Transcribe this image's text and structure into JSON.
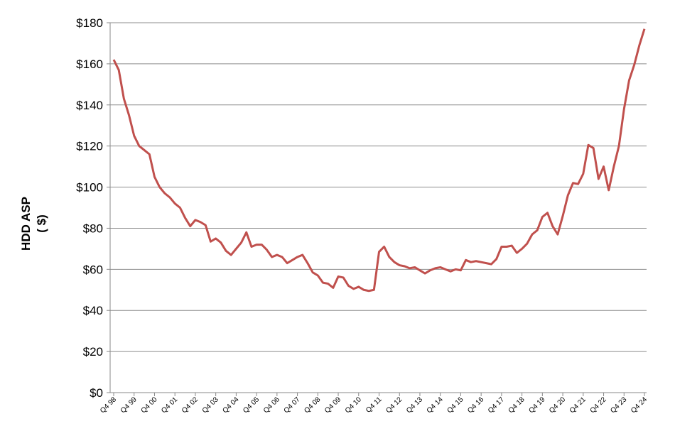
{
  "chart_data": {
    "type": "line",
    "y_label": [
      "HDD ASP",
      "( $)"
    ],
    "categories": [
      "Q4 98",
      null,
      null,
      null,
      "Q4 99",
      null,
      null,
      null,
      "Q4 00",
      null,
      null,
      null,
      "Q4 01",
      null,
      null,
      null,
      "Q4 02",
      null,
      null,
      null,
      "Q4 03",
      null,
      null,
      null,
      "Q4 04",
      null,
      null,
      null,
      "Q4 05",
      null,
      null,
      null,
      "Q4 06",
      null,
      null,
      null,
      "Q4 07",
      null,
      null,
      null,
      "Q4 08",
      null,
      null,
      null,
      "Q4 09",
      null,
      null,
      null,
      "Q4 10",
      null,
      null,
      null,
      "Q4 11",
      null,
      null,
      null,
      "Q4 12",
      null,
      null,
      null,
      "Q4 13",
      null,
      null,
      null,
      "Q4 14",
      null,
      null,
      null,
      "Q4 15",
      null,
      null,
      null,
      "Q4 16",
      null,
      null,
      null,
      "Q4 17",
      null,
      null,
      null,
      "Q4 18",
      null,
      null,
      null,
      "Q4 19",
      null,
      null,
      null,
      "Q4 20",
      null,
      null,
      null,
      "Q4 21",
      null,
      null,
      null,
      "Q4 22",
      null,
      null,
      null,
      "Q4 23",
      null,
      null,
      null,
      "Q4 24"
    ],
    "values": [
      162,
      157,
      143,
      135,
      125,
      120,
      118,
      116,
      105,
      100,
      97,
      95,
      92,
      90,
      85,
      81,
      84,
      83,
      81.5,
      73.5,
      75,
      73,
      69,
      67,
      70,
      73,
      78,
      71,
      72,
      72,
      69.5,
      66,
      67,
      66,
      63,
      64.5,
      66,
      67,
      63,
      58.5,
      57,
      53.5,
      53,
      51,
      56.5,
      56,
      52,
      50.5,
      51.5,
      50,
      49.5,
      50,
      68.5,
      71,
      66,
      63.5,
      62,
      61.5,
      60.5,
      61,
      59.5,
      58,
      59.5,
      60.5,
      61,
      60,
      59,
      60,
      59.5,
      64.5,
      63.5,
      64,
      63.5,
      63,
      62.5,
      65,
      71,
      71,
      71.5,
      68,
      70,
      72.5,
      77,
      79,
      85.5,
      87.5,
      81,
      77,
      86,
      96,
      102,
      101.5,
      106.5,
      120.5,
      119,
      104,
      110,
      98.5,
      110,
      120,
      138,
      152,
      159.5,
      169,
      177
    ],
    "color": "#c0504d",
    "ylim": [
      0,
      180
    ],
    "yticks": [
      {
        "value": 0,
        "label": "$0"
      },
      {
        "value": 20,
        "label": "$20"
      },
      {
        "value": 40,
        "label": "$40"
      },
      {
        "value": 60,
        "label": "$60"
      },
      {
        "value": 80,
        "label": "$80"
      },
      {
        "value": 100,
        "label": "$100"
      },
      {
        "value": 120,
        "label": "$120"
      },
      {
        "value": 140,
        "label": "$140"
      },
      {
        "value": 160,
        "label": "$160"
      },
      {
        "value": 180,
        "label": "$180"
      }
    ],
    "grid": true
  }
}
